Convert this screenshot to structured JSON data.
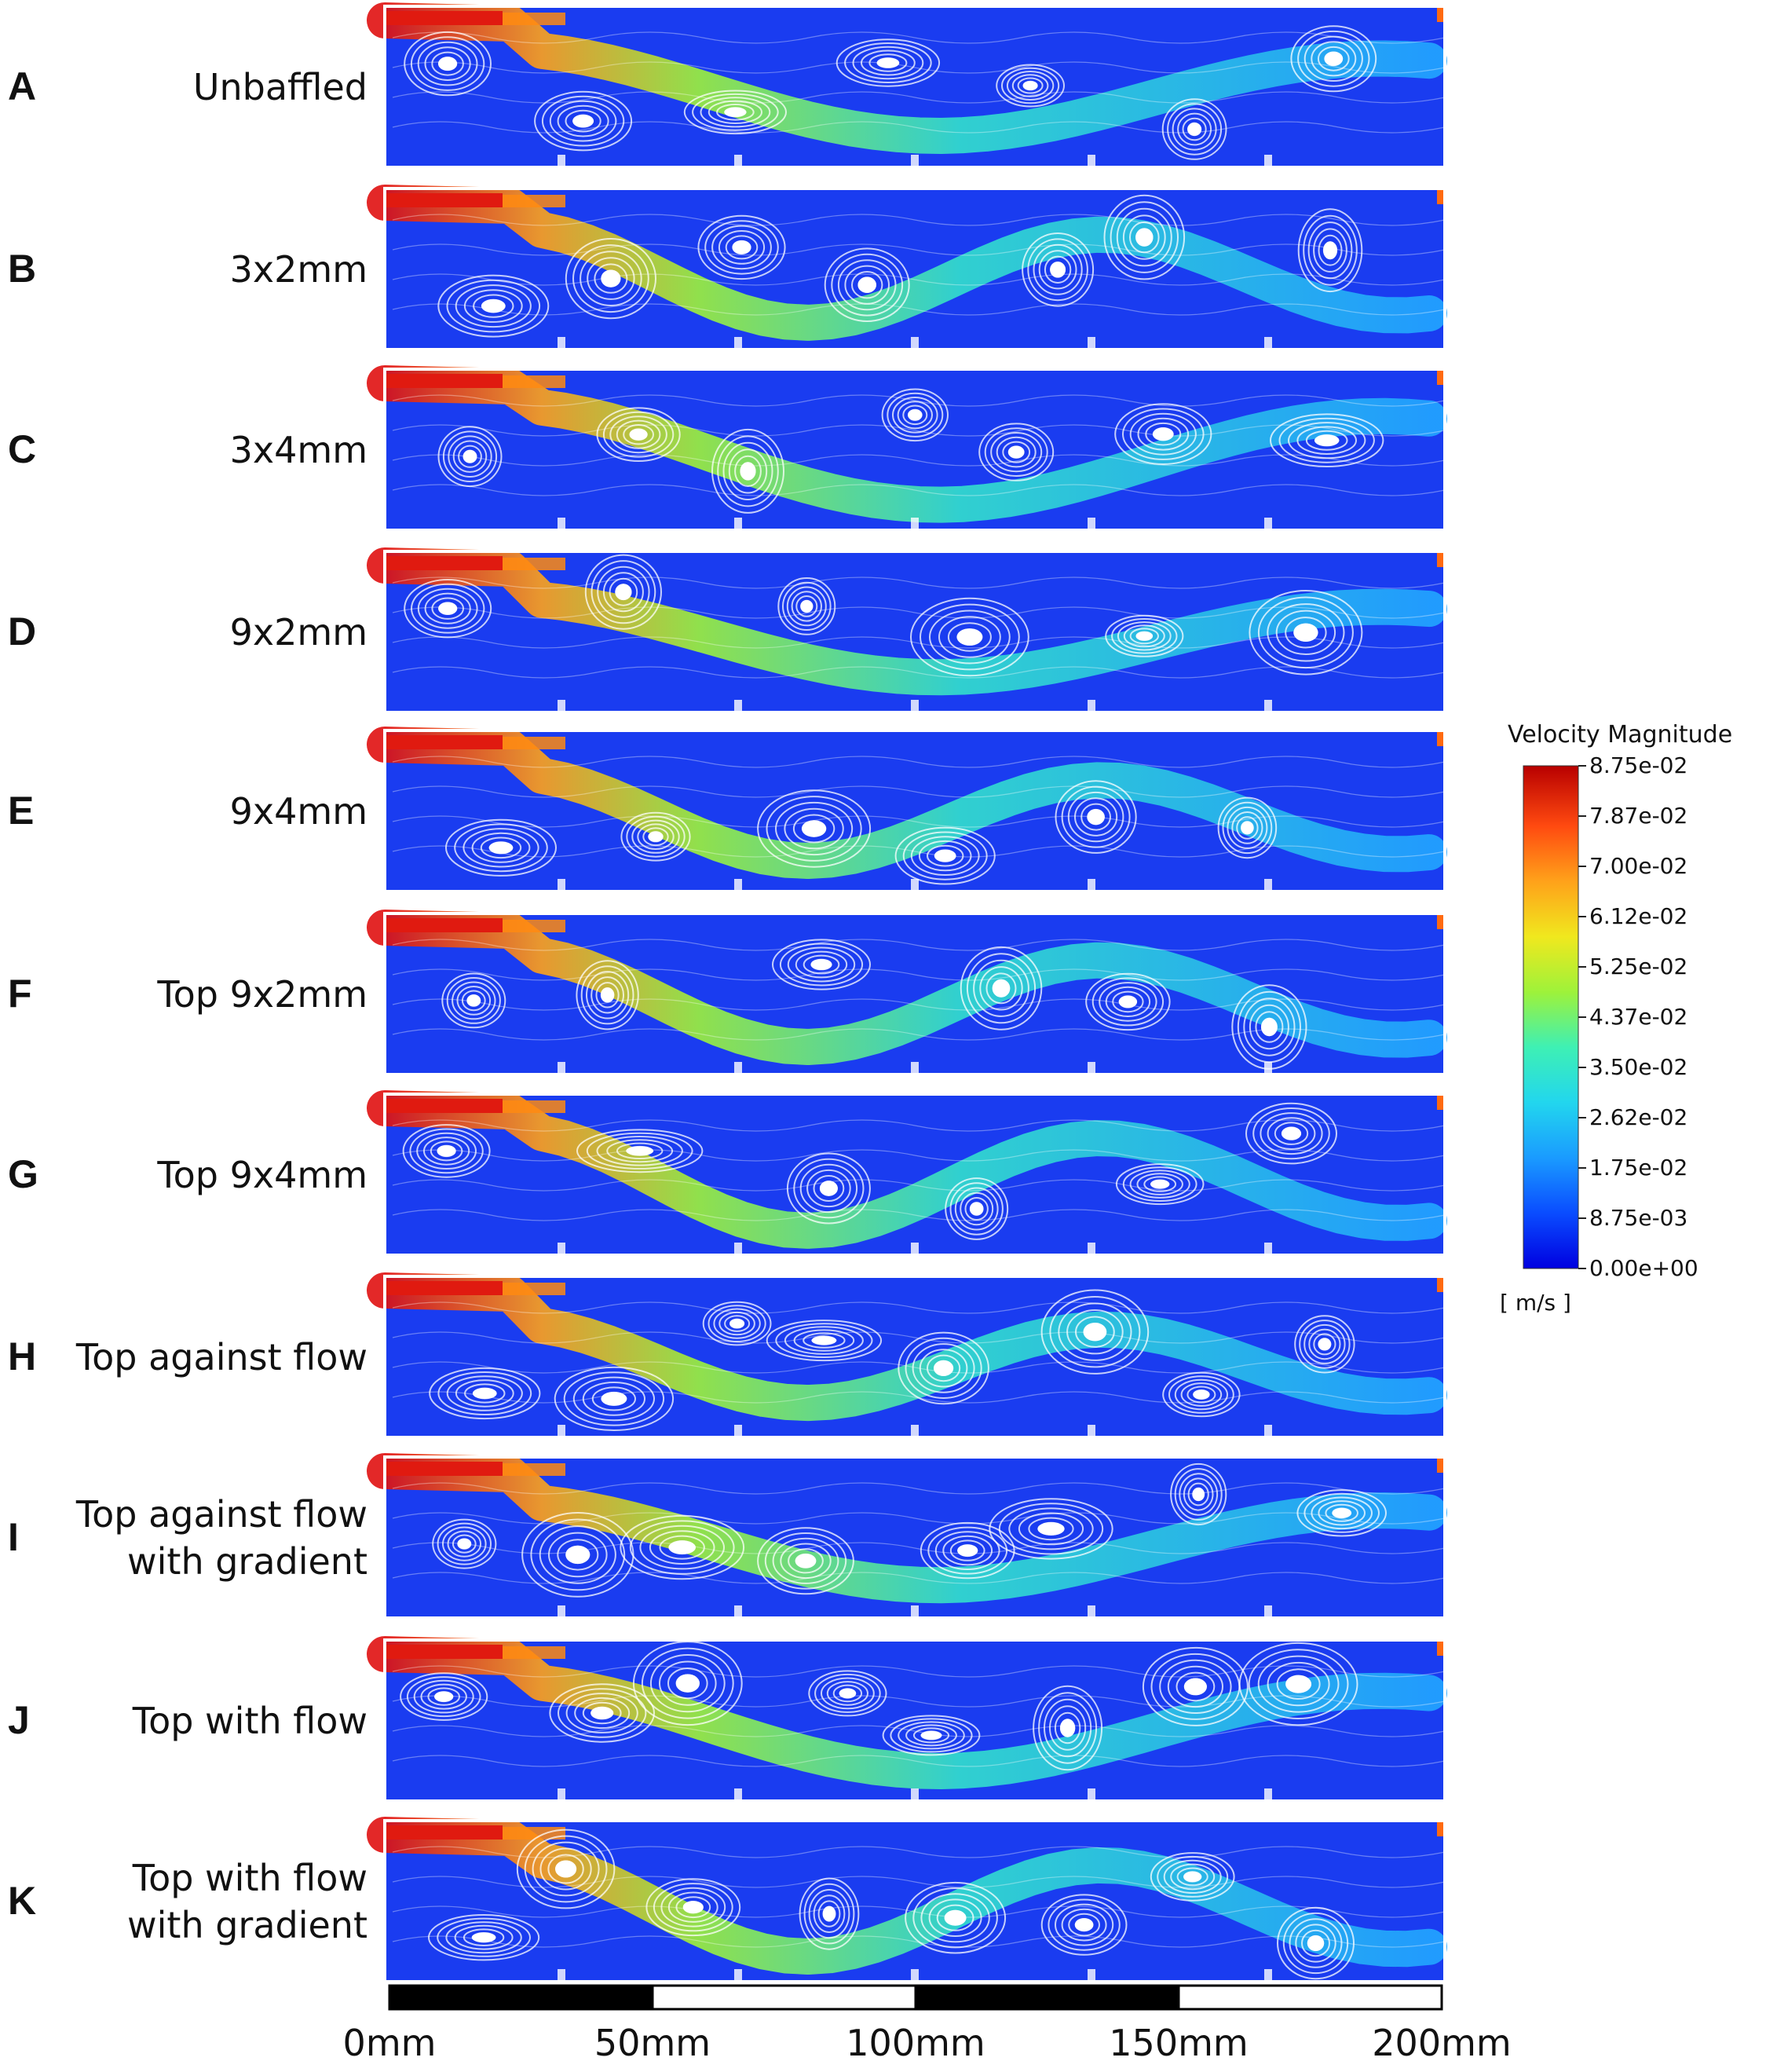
{
  "panels": [
    {
      "letter": "A",
      "name": "Unbaffled"
    },
    {
      "letter": "B",
      "name": "3x2mm"
    },
    {
      "letter": "C",
      "name": "3x4mm"
    },
    {
      "letter": "D",
      "name": "9x2mm"
    },
    {
      "letter": "E",
      "name": "9x4mm"
    },
    {
      "letter": "F",
      "name": "Top 9x2mm"
    },
    {
      "letter": "G",
      "name": "Top 9x4mm"
    },
    {
      "letter": "H",
      "name": "Top against flow"
    },
    {
      "letter": "I",
      "name": "Top against flow with gradient"
    },
    {
      "letter": "J",
      "name": "Top with flow"
    },
    {
      "letter": "K",
      "name": "Top with flow with gradient"
    }
  ],
  "legend": {
    "title": "Velocity Magnitude",
    "unit": "[ m/s ]",
    "ticks": [
      "8.75e-02",
      "7.87e-02",
      "7.00e-02",
      "6.12e-02",
      "5.25e-02",
      "4.37e-02",
      "3.50e-02",
      "2.62e-02",
      "1.75e-02",
      "8.75e-03",
      "0.00e+00"
    ],
    "colors": [
      "#0000e0",
      "#0a4cff",
      "#1a9bff",
      "#22d6ee",
      "#3ef0b4",
      "#9ef23a",
      "#f0e81e",
      "#ffa21a",
      "#ff4a10",
      "#b80000"
    ]
  },
  "scale_bar": {
    "labels": [
      "0mm",
      "50mm",
      "100mm",
      "150mm",
      "200mm"
    ]
  },
  "colors": {
    "background_flow": "#1a3cf0",
    "streamline": "#ffffff"
  }
}
